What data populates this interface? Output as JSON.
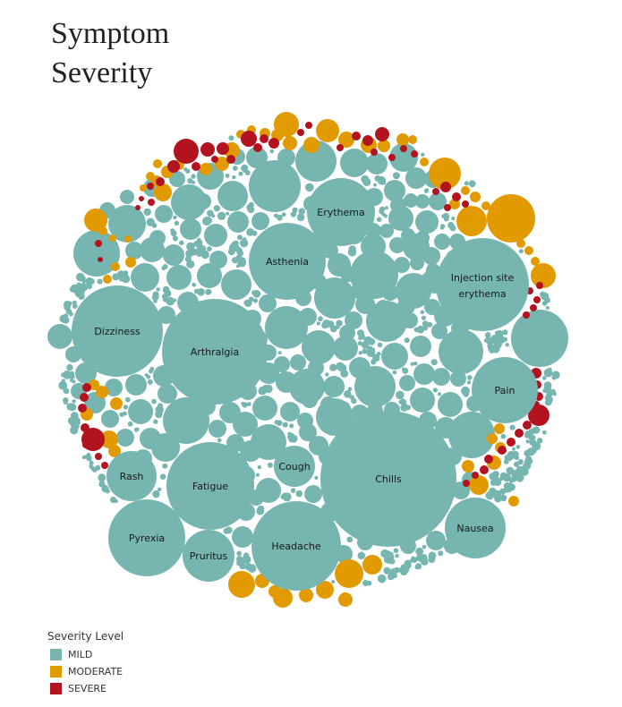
{
  "title": {
    "line1": "Symptom",
    "line2": "Severity"
  },
  "legend": {
    "title": "Severity Level",
    "items": [
      {
        "label": "MILD",
        "color": "#76b5b0"
      },
      {
        "label": "MODERATE",
        "color": "#e19b00"
      },
      {
        "label": "SEVERE",
        "color": "#b3121f"
      }
    ]
  },
  "chart_data": {
    "type": "bubble",
    "title": "Symptom Severity",
    "legend_position": "bottom-left",
    "series": [
      {
        "name": "MILD",
        "color": "#76b5b0"
      },
      {
        "name": "MODERATE",
        "color": "#e19b00"
      },
      {
        "name": "SEVERE",
        "color": "#b3121f"
      }
    ],
    "labeled_bubbles": [
      {
        "label": "Chills",
        "severity": "MILD"
      },
      {
        "label": "Arthralgia",
        "severity": "MILD"
      },
      {
        "label": "Dizziness",
        "severity": "MILD"
      },
      {
        "label": "Injection site erythema",
        "severity": "MILD"
      },
      {
        "label": "Headache",
        "severity": "MILD"
      },
      {
        "label": "Fatigue",
        "severity": "MILD"
      },
      {
        "label": "Asthenia",
        "severity": "MILD"
      },
      {
        "label": "Pyrexia",
        "severity": "MILD"
      },
      {
        "label": "Erythema",
        "severity": "MILD"
      },
      {
        "label": "Pain",
        "severity": "MILD"
      },
      {
        "label": "Nausea",
        "severity": "MILD"
      },
      {
        "label": "Pruritus",
        "severity": "MILD"
      },
      {
        "label": "Cough",
        "severity": "MILD"
      },
      {
        "label": "Rash",
        "severity": "MILD"
      }
    ]
  }
}
